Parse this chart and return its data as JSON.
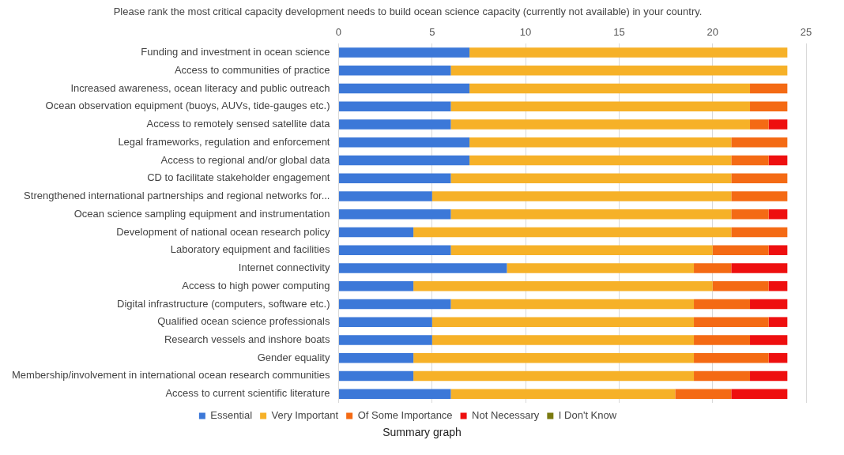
{
  "chart_data": {
    "type": "bar",
    "orientation": "horizontal",
    "stacked": true,
    "title": "Please rank the most critical capacity development needs to build ocean science capacity (currently not available) in your country.",
    "categories": [
      "Funding and investment in ocean science",
      "Access to communities of practice",
      "Increased awareness, ocean literacy and public outreach",
      "Ocean observation equipment (buoys, AUVs, tide-gauges etc.)",
      "Access to remotely sensed satellite data",
      "Legal frameworks, regulation and enforcement",
      "Access to regional and/or global data",
      "CD to facilitate stakeholder engagement",
      "Strengthened international partnerships and regional networks for...",
      "Ocean science sampling equipment and instrumentation",
      "Development of national ocean research policy",
      "Laboratory equipment and facilities",
      "Internet connectivity",
      "Access to high power computing",
      "Digital infrastructure (computers, software etc.)",
      "Qualified ocean science professionals",
      "Research vessels and inshore boats",
      "Gender equality",
      "Membership/involvement in international ocean research communities",
      "Access to current scientific literature"
    ],
    "series": [
      {
        "name": "Essential",
        "color": "#3c78d8",
        "values": [
          7,
          6,
          7,
          6,
          6,
          7,
          7,
          6,
          5,
          6,
          4,
          6,
          9,
          4,
          6,
          5,
          5,
          4,
          4,
          6
        ]
      },
      {
        "name": "Very Important",
        "color": "#f6b128",
        "values": [
          17,
          18,
          15,
          16,
          16,
          14,
          14,
          15,
          16,
          15,
          17,
          14,
          10,
          16,
          13,
          14,
          14,
          15,
          15,
          12
        ]
      },
      {
        "name": "Of Some Importance",
        "color": "#f46a14",
        "values": [
          0,
          0,
          2,
          2,
          1,
          3,
          2,
          3,
          3,
          2,
          3,
          3,
          2,
          3,
          3,
          4,
          3,
          4,
          3,
          3
        ]
      },
      {
        "name": "Not Necessary",
        "color": "#ee0f0f",
        "values": [
          0,
          0,
          0,
          0,
          1,
          0,
          1,
          0,
          0,
          1,
          0,
          1,
          3,
          1,
          2,
          1,
          2,
          1,
          2,
          3
        ]
      },
      {
        "name": "I Don't Know",
        "color": "#7a7a10",
        "values": [
          0,
          0,
          0,
          0,
          0,
          0,
          0,
          0,
          0,
          0,
          0,
          0,
          0,
          0,
          0,
          0,
          0,
          0,
          0,
          0
        ]
      }
    ],
    "xlim": [
      0,
      25
    ],
    "xticks": [
      0,
      5,
      10,
      15,
      20,
      25
    ],
    "grid": "x",
    "legend": "bottom",
    "annotations": [
      "Summary graph"
    ]
  }
}
